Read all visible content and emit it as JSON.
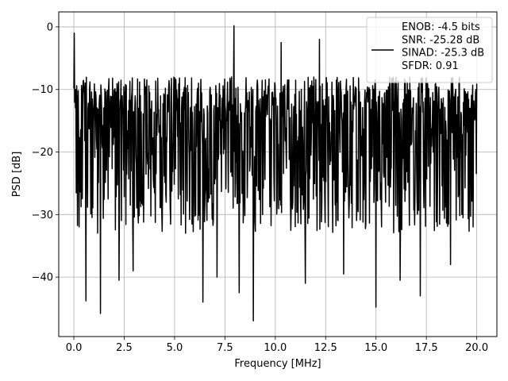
{
  "chart_data": {
    "type": "line",
    "title": "",
    "xlabel": "Frequency [MHz]",
    "ylabel": "PSD [dB]",
    "xlim": [
      -0.75,
      21.0
    ],
    "ylim": [
      -49.5,
      2.4
    ],
    "xticks": [
      0.0,
      2.5,
      5.0,
      7.5,
      10.0,
      12.5,
      15.0,
      17.5,
      20.0
    ],
    "xtick_labels": [
      "0.0",
      "2.5",
      "5.0",
      "7.5",
      "10.0",
      "12.5",
      "15.0",
      "17.5",
      "20.0"
    ],
    "yticks": [
      0,
      -10,
      -20,
      -30,
      -40
    ],
    "ytick_labels": [
      "0",
      "−10",
      "−20",
      "−30",
      "−40"
    ],
    "grid": true,
    "legend": {
      "placement": "upper-right",
      "entries": [
        "ENOB: -4.5 bits",
        "SNR: -25.28 dB",
        "SINAD: -25.3 dB",
        "SFDR: 0.91"
      ]
    },
    "series": [
      {
        "color": "#000000",
        "x_range": [
          0.0,
          20.0
        ],
        "n_points": 1000,
        "typical_band_db": [
          -25,
          -8
        ],
        "peak_values": [
          {
            "x": 0.03,
            "y": -1.0
          },
          {
            "x": 7.95,
            "y": 0.2
          },
          {
            "x": 10.3,
            "y": -2.5
          },
          {
            "x": 12.2,
            "y": -2.0
          },
          {
            "x": 8.9,
            "y": -3.0
          }
        ],
        "dip_values": [
          {
            "x": 0.6,
            "y": -43.8
          },
          {
            "x": 1.32,
            "y": -45.8
          },
          {
            "x": 2.25,
            "y": -40.5
          },
          {
            "x": 2.95,
            "y": -39.0
          },
          {
            "x": 6.4,
            "y": -44.0
          },
          {
            "x": 7.1,
            "y": -40.0
          },
          {
            "x": 8.2,
            "y": -42.5
          },
          {
            "x": 8.9,
            "y": -47.0
          },
          {
            "x": 11.5,
            "y": -41.0
          },
          {
            "x": 13.4,
            "y": -39.5
          },
          {
            "x": 15.0,
            "y": -44.8
          },
          {
            "x": 16.2,
            "y": -40.5
          },
          {
            "x": 17.2,
            "y": -43.0
          },
          {
            "x": 18.7,
            "y": -38.0
          }
        ]
      }
    ]
  }
}
